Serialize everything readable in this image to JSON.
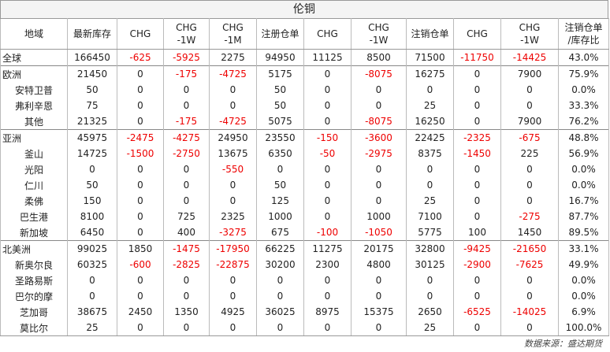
{
  "title": "伦铜",
  "table": {
    "header": [
      "地域",
      "最新库存",
      "CHG",
      "CHG\n-1W",
      "CHG\n-1M",
      "注册仓单",
      "CHG",
      "CHG\n-1W",
      "注销仓单",
      "CHG",
      "CHG\n-1W",
      "注销仓单\n/库存比"
    ],
    "groups": [
      {
        "rows": [
          [
            "全球",
            "166450",
            "-625",
            "-5925",
            "2275",
            "94950",
            "11125",
            "8500",
            "71500",
            "-11750",
            "-14425",
            "43.0%"
          ]
        ]
      },
      {
        "rows": [
          [
            "欧洲",
            "21450",
            "0",
            "-175",
            "-4725",
            "5175",
            "0",
            "-8075",
            "16275",
            "0",
            "7900",
            "75.9%"
          ],
          [
            "安特卫普",
            "50",
            "0",
            "0",
            "0",
            "50",
            "0",
            "0",
            "0",
            "0",
            "0",
            "0.0%"
          ],
          [
            "弗利辛恩",
            "75",
            "0",
            "0",
            "0",
            "50",
            "0",
            "0",
            "25",
            "0",
            "0",
            "33.3%"
          ],
          [
            "其他",
            "21325",
            "0",
            "-175",
            "-4725",
            "5075",
            "0",
            "-8075",
            "16250",
            "0",
            "7900",
            "76.2%"
          ]
        ]
      },
      {
        "rows": [
          [
            "亚洲",
            "45975",
            "-2475",
            "-4275",
            "24950",
            "23550",
            "-150",
            "-3600",
            "22425",
            "-2325",
            "-675",
            "48.8%"
          ],
          [
            "釜山",
            "14725",
            "-1500",
            "-2750",
            "13675",
            "6350",
            "-50",
            "-2975",
            "8375",
            "-1450",
            "225",
            "56.9%"
          ],
          [
            "光阳",
            "0",
            "0",
            "0",
            "-550",
            "0",
            "0",
            "0",
            "0",
            "0",
            "0",
            "0.0%"
          ],
          [
            "仁川",
            "50",
            "0",
            "0",
            "0",
            "50",
            "0",
            "0",
            "0",
            "0",
            "0",
            "0.0%"
          ],
          [
            "柔佛",
            "150",
            "0",
            "0",
            "0",
            "125",
            "0",
            "0",
            "25",
            "0",
            "0",
            "16.7%"
          ],
          [
            "巴生港",
            "8100",
            "0",
            "725",
            "2325",
            "1000",
            "0",
            "1000",
            "7100",
            "0",
            "-275",
            "87.7%"
          ],
          [
            "新加坡",
            "6450",
            "0",
            "400",
            "-3275",
            "675",
            "-100",
            "-1050",
            "5775",
            "100",
            "1450",
            "89.5%"
          ]
        ]
      },
      {
        "rows": [
          [
            "北美洲",
            "99025",
            "1850",
            "-1475",
            "-17950",
            "66225",
            "11275",
            "20175",
            "32800",
            "-9425",
            "-21650",
            "33.1%"
          ],
          [
            "新奥尔良",
            "60325",
            "-600",
            "-2825",
            "-22875",
            "30200",
            "2300",
            "4800",
            "30125",
            "-2900",
            "-7625",
            "49.9%"
          ],
          [
            "圣路易斯",
            "0",
            "0",
            "0",
            "0",
            "0",
            "0",
            "0",
            "0",
            "0",
            "0",
            "0.0%"
          ],
          [
            "巴尔的摩",
            "0",
            "0",
            "0",
            "0",
            "0",
            "0",
            "0",
            "0",
            "0",
            "0",
            "0.0%"
          ],
          [
            "芝加哥",
            "38675",
            "2450",
            "1350",
            "4925",
            "36025",
            "8975",
            "15375",
            "2650",
            "-6525",
            "-14025",
            "6.9%"
          ],
          [
            "莫比尔",
            "25",
            "0",
            "0",
            "0",
            "0",
            "0",
            "0",
            "25",
            "0",
            "0",
            "100.0%"
          ]
        ]
      }
    ]
  },
  "footer": "数据来源：盛达期货"
}
